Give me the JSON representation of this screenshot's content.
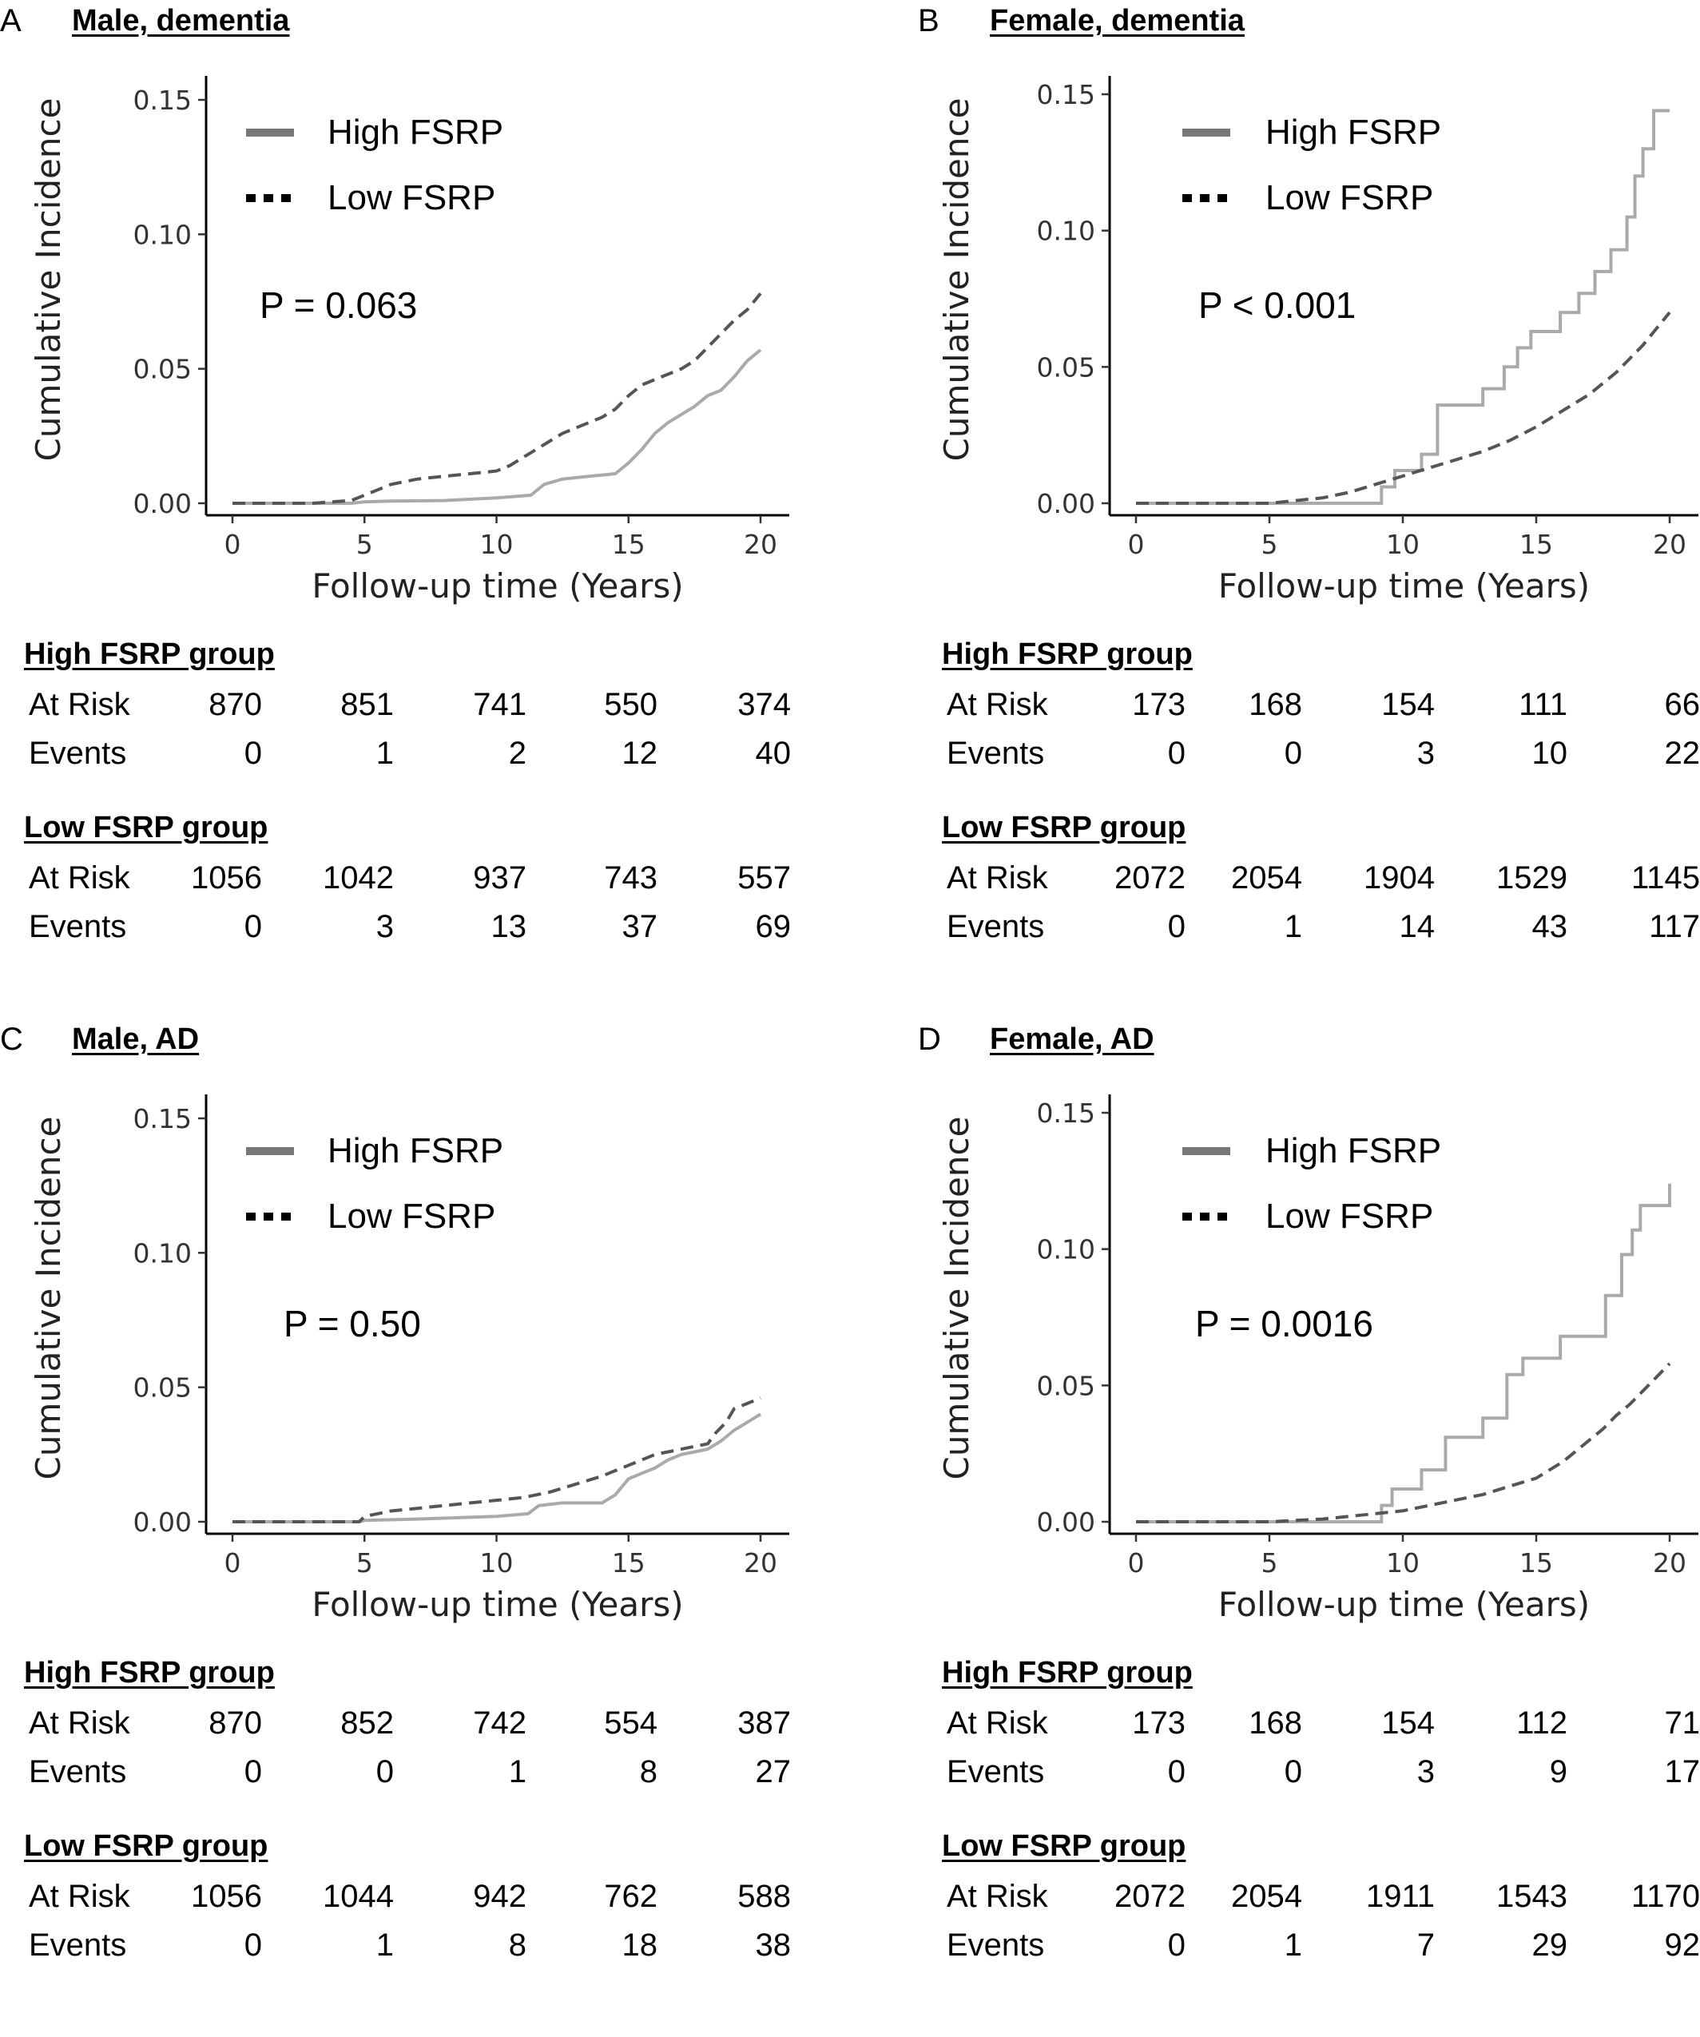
{
  "colors": {
    "high": "#aaaaaa",
    "low": "#555555",
    "axis": "#000000",
    "legend_high": "#777777",
    "legend_low": "#000000"
  },
  "axes": {
    "xlabel": "Follow-up time (Years)",
    "ylabel": "Cumulative Incidence",
    "xticks": [
      "0",
      "5",
      "10",
      "15",
      "20"
    ],
    "yticks": [
      "0.00",
      "0.05",
      "0.10",
      "0.15"
    ]
  },
  "legend": {
    "high_label": "High FSRP",
    "low_label": "Low FSRP"
  },
  "table_labels": {
    "at_risk": "At Risk",
    "events": "Events"
  },
  "panels": [
    {
      "letter": "A",
      "title": "Male, dementia",
      "pvalue": "P = 0.063",
      "high_group": {
        "heading": "High FSRP group",
        "at_risk": [
          "870",
          "851",
          "741",
          "550",
          "374"
        ],
        "events": [
          "0",
          "1",
          "2",
          "12",
          "40"
        ]
      },
      "low_group": {
        "heading": "Low FSRP group",
        "at_risk": [
          "1056",
          "1042",
          "937",
          "743",
          "557"
        ],
        "events": [
          "0",
          "3",
          "13",
          "37",
          "69"
        ]
      }
    },
    {
      "letter": "B",
      "title": "Female, dementia",
      "pvalue": "P < 0.001",
      "high_group": {
        "heading": "High FSRP group",
        "at_risk": [
          "173",
          "168",
          "154",
          "111",
          "66"
        ],
        "events": [
          "0",
          "0",
          "3",
          "10",
          "22"
        ]
      },
      "low_group": {
        "heading": "Low FSRP group",
        "at_risk": [
          "2072",
          "2054",
          "1904",
          "1529",
          "1145"
        ],
        "events": [
          "0",
          "1",
          "14",
          "43",
          "117"
        ]
      }
    },
    {
      "letter": "C",
      "title": "Male, AD",
      "pvalue": "P = 0.50",
      "high_group": {
        "heading": "High FSRP group",
        "at_risk": [
          "870",
          "852",
          "742",
          "554",
          "387"
        ],
        "events": [
          "0",
          "0",
          "1",
          "8",
          "27"
        ]
      },
      "low_group": {
        "heading": "Low FSRP group",
        "at_risk": [
          "1056",
          "1044",
          "942",
          "762",
          "588"
        ],
        "events": [
          "0",
          "1",
          "8",
          "18",
          "38"
        ]
      }
    },
    {
      "letter": "D",
      "title": "Female, AD",
      "pvalue": "P = 0.0016",
      "high_group": {
        "heading": "High FSRP group",
        "at_risk": [
          "173",
          "168",
          "154",
          "112",
          "71"
        ],
        "events": [
          "0",
          "0",
          "3",
          "9",
          "17"
        ]
      },
      "low_group": {
        "heading": "Low FSRP group",
        "at_risk": [
          "2072",
          "2054",
          "1911",
          "1543",
          "1170"
        ],
        "events": [
          "0",
          "1",
          "7",
          "29",
          "92"
        ]
      }
    }
  ],
  "chart_data": [
    {
      "type": "line",
      "title": "Male, dementia",
      "xlabel": "Follow-up time (Years)",
      "ylabel": "Cumulative Incidence",
      "xlim": [
        0,
        20
      ],
      "ylim": [
        0,
        0.15
      ],
      "legend": "top-left",
      "grid": false,
      "annotation": "P = 0.063",
      "series": [
        {
          "name": "High FSRP",
          "style": "solid",
          "x": [
            0,
            4.5,
            5,
            6,
            8,
            10,
            11.3,
            11.8,
            12.5,
            13.5,
            14.5,
            15,
            15.5,
            16,
            16.5,
            17,
            17.5,
            18,
            18.5,
            19,
            19.5,
            20
          ],
          "y": [
            0,
            0,
            0.0005,
            0.0008,
            0.001,
            0.002,
            0.003,
            0.007,
            0.009,
            0.01,
            0.011,
            0.015,
            0.02,
            0.026,
            0.03,
            0.033,
            0.036,
            0.04,
            0.042,
            0.047,
            0.053,
            0.057
          ]
        },
        {
          "name": "Low FSRP",
          "style": "dashed",
          "x": [
            0,
            3,
            4.5,
            5,
            5.5,
            6,
            7,
            8,
            9,
            10,
            10.5,
            11,
            11.5,
            12,
            12.5,
            13,
            13.5,
            14,
            14.5,
            15,
            15.5,
            16,
            16.5,
            17,
            17.5,
            18,
            18.5,
            19,
            19.5,
            20
          ],
          "y": [
            0,
            0,
            0.001,
            0.003,
            0.005,
            0.007,
            0.009,
            0.01,
            0.011,
            0.012,
            0.014,
            0.017,
            0.02,
            0.023,
            0.026,
            0.028,
            0.03,
            0.032,
            0.035,
            0.04,
            0.044,
            0.046,
            0.048,
            0.05,
            0.053,
            0.058,
            0.063,
            0.068,
            0.072,
            0.078
          ]
        }
      ]
    },
    {
      "type": "line",
      "title": "Female, dementia",
      "xlabel": "Follow-up time (Years)",
      "ylabel": "Cumulative Incidence",
      "xlim": [
        0,
        20
      ],
      "ylim": [
        0,
        0.15
      ],
      "legend": "top-left",
      "grid": false,
      "annotation": "P < 0.001",
      "series": [
        {
          "name": "High FSRP",
          "style": "solid",
          "x": [
            0,
            9.2,
            9.2,
            9.7,
            9.7,
            10.7,
            10.7,
            11.3,
            11.3,
            13,
            13,
            13.8,
            13.8,
            14.3,
            14.3,
            14.8,
            14.8,
            15.9,
            15.9,
            16.6,
            16.6,
            17.2,
            17.2,
            17.8,
            17.8,
            18.4,
            18.4,
            18.7,
            18.7,
            19,
            19,
            19.4,
            19.4,
            20
          ],
          "y": [
            0,
            0,
            0.006,
            0.006,
            0.012,
            0.012,
            0.018,
            0.018,
            0.036,
            0.036,
            0.042,
            0.042,
            0.05,
            0.05,
            0.057,
            0.057,
            0.063,
            0.063,
            0.07,
            0.07,
            0.077,
            0.077,
            0.085,
            0.085,
            0.093,
            0.093,
            0.105,
            0.105,
            0.12,
            0.12,
            0.13,
            0.13,
            0.144,
            0.144
          ]
        },
        {
          "name": "Low FSRP",
          "style": "dashed",
          "x": [
            0,
            5,
            6,
            7,
            8,
            9,
            10,
            11,
            12,
            13,
            14,
            15,
            16,
            17,
            17.5,
            18,
            18.5,
            19,
            19.5,
            20
          ],
          "y": [
            0,
            0,
            0.001,
            0.002,
            0.004,
            0.007,
            0.01,
            0.013,
            0.016,
            0.019,
            0.023,
            0.028,
            0.034,
            0.04,
            0.044,
            0.048,
            0.053,
            0.058,
            0.064,
            0.07
          ]
        }
      ]
    },
    {
      "type": "line",
      "title": "Male, AD",
      "xlabel": "Follow-up time (Years)",
      "ylabel": "Cumulative Incidence",
      "xlim": [
        0,
        20
      ],
      "ylim": [
        0,
        0.15
      ],
      "legend": "top-left",
      "grid": false,
      "annotation": "P = 0.50",
      "series": [
        {
          "name": "High FSRP",
          "style": "solid",
          "x": [
            0,
            4.8,
            5,
            7,
            10,
            11.2,
            11.6,
            12.5,
            14,
            14.5,
            15,
            15.5,
            16,
            16.5,
            17,
            17.5,
            18,
            18.5,
            19,
            19.5,
            20
          ],
          "y": [
            0,
            0,
            0.0005,
            0.001,
            0.002,
            0.003,
            0.006,
            0.007,
            0.007,
            0.01,
            0.016,
            0.018,
            0.02,
            0.023,
            0.025,
            0.026,
            0.027,
            0.03,
            0.034,
            0.037,
            0.04
          ]
        },
        {
          "name": "Low FSRP",
          "style": "dashed",
          "x": [
            0,
            4.8,
            5,
            6,
            7,
            8,
            9,
            10,
            11,
            12,
            13,
            14,
            14.5,
            15,
            15.5,
            16,
            16.5,
            17,
            17.5,
            18,
            18.3,
            18.7,
            19,
            19.5,
            20
          ],
          "y": [
            0,
            0,
            0.002,
            0.004,
            0.005,
            0.006,
            0.007,
            0.008,
            0.009,
            0.011,
            0.014,
            0.017,
            0.019,
            0.021,
            0.023,
            0.025,
            0.026,
            0.027,
            0.028,
            0.029,
            0.033,
            0.037,
            0.042,
            0.044,
            0.046
          ]
        }
      ]
    },
    {
      "type": "line",
      "title": "Female, AD",
      "xlabel": "Follow-up time (Years)",
      "ylabel": "Cumulative Incidence",
      "xlim": [
        0,
        20
      ],
      "ylim": [
        0,
        0.15
      ],
      "legend": "top-left",
      "grid": false,
      "annotation": "P = 0.0016",
      "series": [
        {
          "name": "High FSRP",
          "style": "solid",
          "x": [
            0,
            9.2,
            9.2,
            9.6,
            9.6,
            10.7,
            10.7,
            11.6,
            11.6,
            13,
            13,
            13.9,
            13.9,
            14.5,
            14.5,
            15.9,
            15.9,
            17.6,
            17.6,
            18.2,
            18.2,
            18.6,
            18.6,
            18.9,
            18.9,
            19.5,
            19.5,
            20,
            20
          ],
          "y": [
            0,
            0,
            0.006,
            0.006,
            0.012,
            0.012,
            0.019,
            0.019,
            0.031,
            0.031,
            0.038,
            0.038,
            0.054,
            0.054,
            0.06,
            0.06,
            0.068,
            0.068,
            0.083,
            0.083,
            0.098,
            0.098,
            0.107,
            0.107,
            0.116,
            0.116,
            0.116,
            0.116,
            0.124
          ]
        },
        {
          "name": "Low FSRP",
          "style": "dashed",
          "x": [
            0,
            5,
            6,
            7,
            8,
            9,
            10,
            11,
            12,
            13,
            14,
            15,
            16,
            17,
            17.5,
            18,
            18.5,
            19,
            19.5,
            20
          ],
          "y": [
            0,
            0,
            0.0005,
            0.001,
            0.002,
            0.003,
            0.004,
            0.006,
            0.008,
            0.01,
            0.013,
            0.016,
            0.022,
            0.03,
            0.034,
            0.039,
            0.043,
            0.048,
            0.053,
            0.058
          ]
        }
      ]
    }
  ]
}
